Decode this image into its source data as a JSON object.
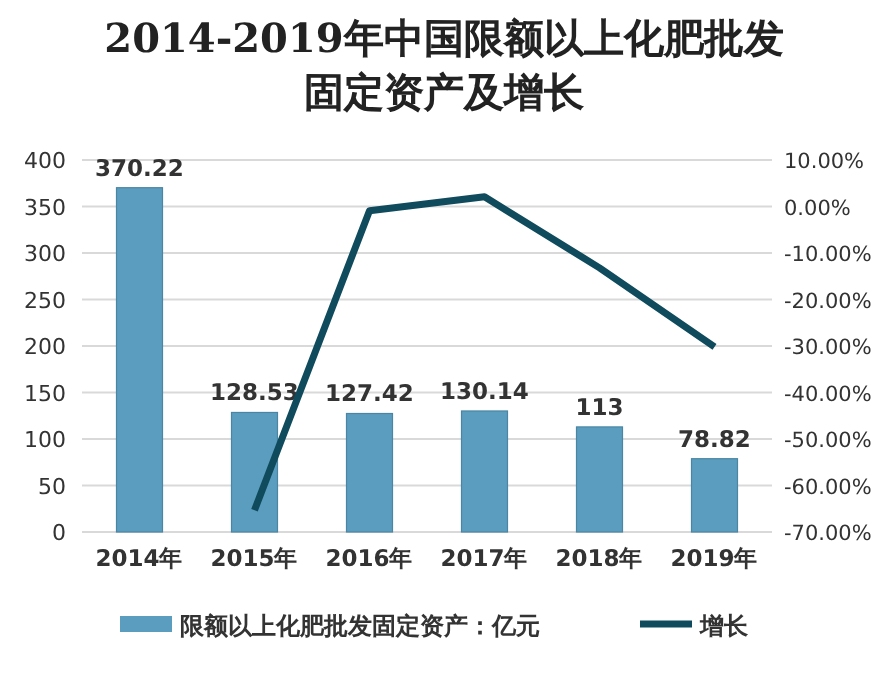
{
  "chart_data": {
    "type": "bar",
    "title": "2014-2019年中国限额以上化肥批发固定资产及增长",
    "categories": [
      "2014年",
      "2015年",
      "2016年",
      "2017年",
      "2018年",
      "2019年"
    ],
    "series": [
      {
        "name": "限额以上化肥批发固定资产：亿元",
        "color": "#5b9dbf",
        "values": [
          370.22,
          128.53,
          127.42,
          130.14,
          113,
          78.82
        ],
        "value_labels": [
          "370.22",
          "128.53",
          "127.42",
          "130.14",
          "113",
          "78.82"
        ]
      },
      {
        "name": "增长",
        "type": "line",
        "axis": "y2",
        "color": "#0f4b5c",
        "values": [
          null,
          -65.3,
          -0.9,
          2.1,
          -13.2,
          -30.2
        ]
      }
    ],
    "ylim": [
      0,
      400
    ],
    "yticks": [
      0,
      50,
      100,
      150,
      200,
      250,
      300,
      350,
      400
    ],
    "y2lim": [
      -70,
      10
    ],
    "y2ticks": [
      {
        "value": -70,
        "label": "-70.00%"
      },
      {
        "value": -60,
        "label": "-60.00%"
      },
      {
        "value": -50,
        "label": "-50.00%"
      },
      {
        "value": -40,
        "label": "-40.00%"
      },
      {
        "value": -30,
        "label": "-30.00%"
      },
      {
        "value": -20,
        "label": "-20.00%"
      },
      {
        "value": -10,
        "label": "-10.00%"
      },
      {
        "value": 0,
        "label": "0.00%"
      },
      {
        "value": 10,
        "label": "10.00%"
      }
    ],
    "grid": "y",
    "legend": "bottom",
    "marker": "none"
  }
}
